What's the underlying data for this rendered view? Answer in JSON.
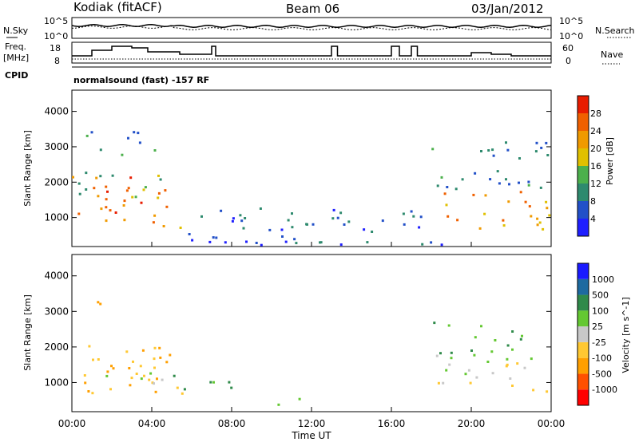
{
  "header": {
    "station": "Kodiak (fitACF)",
    "beam": "Beam 06",
    "date": "03/Jan/2012"
  },
  "noise_panel": {
    "left_label": "N.Sky",
    "right_label": "N.Search",
    "tick_top": "10^5",
    "tick_bottom": "10^0"
  },
  "freq_panel": {
    "left_label_line1": "Freq.",
    "left_label_line2": "[MHz]",
    "right_label": "Nave",
    "left_ticks": [
      "18",
      "8"
    ],
    "right_ticks": [
      "60",
      "0"
    ]
  },
  "cpid": {
    "label": "CPID",
    "mode": "normalsound (fast) -157 RF"
  },
  "chart_data": [
    {
      "type": "heatmap",
      "quantity": "Power",
      "ylabel": "Slant Range [km]",
      "xlabel": "Time UT",
      "ylim": [
        180,
        4600
      ],
      "yticks": [
        "1000",
        "2000",
        "3000",
        "4000"
      ],
      "colorbar": {
        "label": "Power [dB]",
        "ticks": [
          "28",
          "24",
          "20",
          "16",
          "12",
          "8",
          "4"
        ],
        "range": [
          0,
          32
        ]
      },
      "echo_regions": [
        {
          "t0": 0.0,
          "t1": 5.0,
          "r0": 700,
          "r1": 2300,
          "level": 24
        },
        {
          "t0": 0.3,
          "t1": 4.8,
          "r0": 1500,
          "r1": 2300,
          "level": 14
        },
        {
          "t0": 0.5,
          "t1": 4.5,
          "r0": 2800,
          "r1": 3500,
          "level": 10
        },
        {
          "t0": 4.5,
          "t1": 5.5,
          "r0": 400,
          "r1": 800,
          "level": 14
        },
        {
          "t0": 5.5,
          "t1": 18.0,
          "r0": 250,
          "r1": 1300,
          "level": 6
        },
        {
          "t0": 18.0,
          "t1": 24.0,
          "r0": 700,
          "r1": 1800,
          "level": 22
        },
        {
          "t0": 18.0,
          "t1": 24.0,
          "r0": 1800,
          "r1": 3200,
          "level": 9
        },
        {
          "t0": 8.5,
          "t1": 24.0,
          "r0": 200,
          "r1": 350,
          "level": 6
        }
      ]
    },
    {
      "type": "heatmap",
      "quantity": "Velocity",
      "ylabel": "Slant Range [km]",
      "xlabel": "Time UT",
      "ylim": [
        180,
        4600
      ],
      "yticks": [
        "1000",
        "2000",
        "3000",
        "4000"
      ],
      "colorbar": {
        "label": "Velocity [m s^-1]",
        "ticks": [
          "1000",
          "500",
          "100",
          "25",
          "-25",
          "-100",
          "-500",
          "-1000"
        ],
        "range": [
          -1000,
          1000
        ]
      },
      "echo_regions": [
        {
          "t0": 0.0,
          "t1": 5.0,
          "r0": 700,
          "r1": 2300,
          "level": -100
        },
        {
          "t0": 0.5,
          "t1": 1.5,
          "r0": 2900,
          "r1": 3400,
          "level": -300
        },
        {
          "t0": 0.0,
          "t1": 5.5,
          "r0": 700,
          "r1": 1300,
          "level": 0
        },
        {
          "t0": 5.0,
          "t1": 8.0,
          "r0": 700,
          "r1": 1300,
          "level": 120
        },
        {
          "t0": 9.0,
          "t1": 12.0,
          "r0": 400,
          "r1": 600,
          "level": 80
        },
        {
          "t0": 18.0,
          "t1": 24.0,
          "r0": 700,
          "r1": 1800,
          "level": 0
        },
        {
          "t0": 18.0,
          "t1": 22.5,
          "r0": 1800,
          "r1": 2800,
          "level": 100
        }
      ]
    }
  ],
  "time_axis": {
    "label": "Time UT",
    "ticks": [
      "00:00",
      "04:00",
      "08:00",
      "12:00",
      "16:00",
      "20:00",
      "00:00"
    ]
  },
  "colors": {
    "power_scale": [
      "#1f1fff",
      "#2250c8",
      "#2e8a6e",
      "#4cb04c",
      "#e0c000",
      "#f09a00",
      "#f06000",
      "#e81c00"
    ],
    "velocity_scale": [
      "#ff0000",
      "#ff5000",
      "#ff9f00",
      "#ffc832",
      "#c8c8c8",
      "#64c832",
      "#2f8a4a",
      "#1d6aa0",
      "#1a1aff"
    ]
  }
}
